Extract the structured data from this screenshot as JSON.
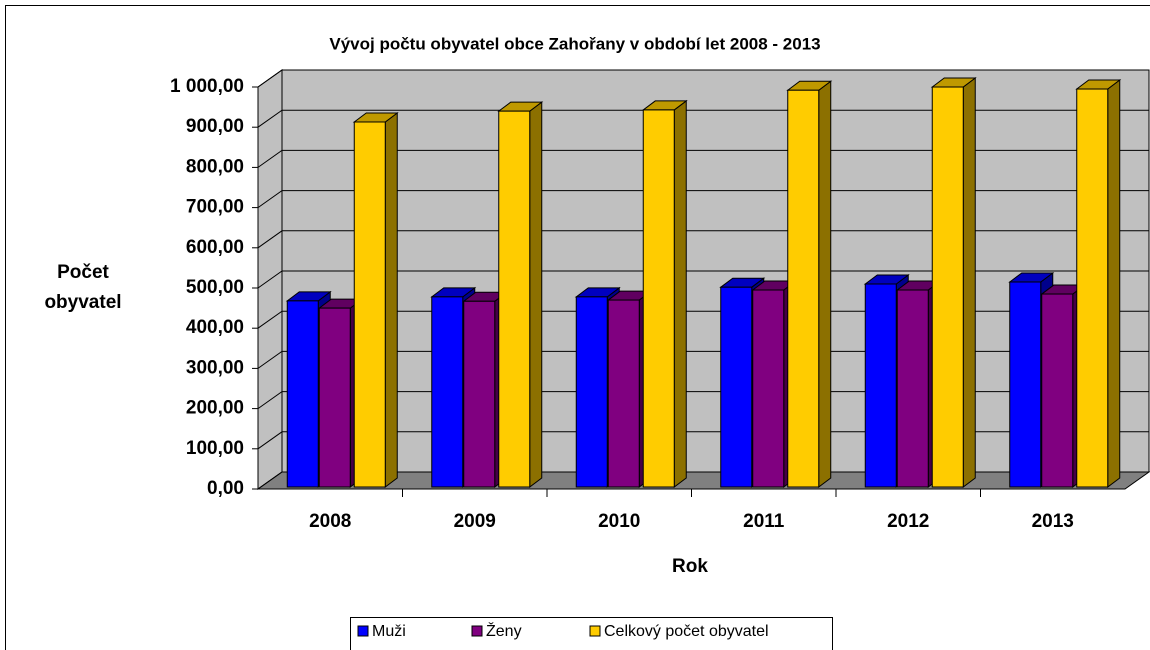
{
  "chart_data": {
    "type": "bar3d",
    "title": "Vývoj počtu obyvatel obce Zahořany v období let 2008 - 2013",
    "x_label": "Rok",
    "y_label": "Počet obyvatel",
    "categories": [
      "2008",
      "2009",
      "2010",
      "2011",
      "2012",
      "2013"
    ],
    "series": [
      {
        "name": "Muži",
        "color": "#0000ff",
        "values": [
          463,
          473,
          473,
          497,
          505,
          510
        ]
      },
      {
        "name": "Ženy",
        "color": "#800080",
        "values": [
          445,
          462,
          465,
          490,
          490,
          480
        ]
      },
      {
        "name": "Celkový počet obyvatel",
        "color": "#ffcc00",
        "values": [
          908,
          935,
          938,
          987,
          995,
          990
        ]
      }
    ],
    "ylim": [
      0,
      1000
    ],
    "yticks": [
      {
        "value": 0,
        "label": "0,00"
      },
      {
        "value": 100,
        "label": "100,00"
      },
      {
        "value": 200,
        "label": "200,00"
      },
      {
        "value": 300,
        "label": "300,00"
      },
      {
        "value": 400,
        "label": "400,00"
      },
      {
        "value": 500,
        "label": "500,00"
      },
      {
        "value": 600,
        "label": "600,00"
      },
      {
        "value": 700,
        "label": "700,00"
      },
      {
        "value": 800,
        "label": "800,00"
      },
      {
        "value": 900,
        "label": "900,00"
      },
      {
        "value": 1000,
        "label": "1 000,00"
      }
    ],
    "grid": true,
    "legend": "bottom"
  }
}
